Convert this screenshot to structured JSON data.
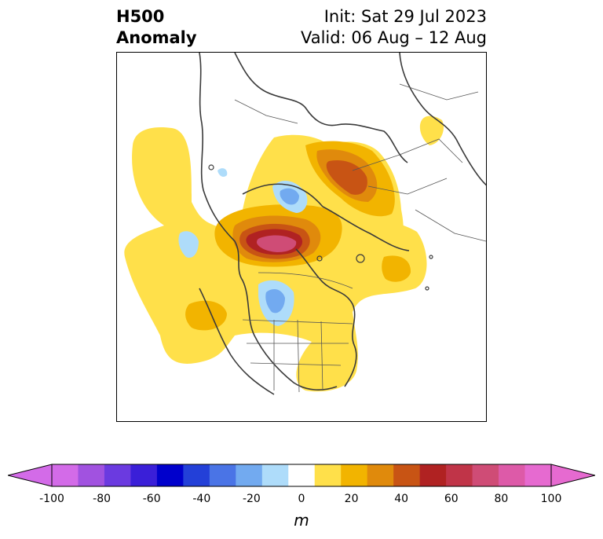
{
  "header": {
    "title_line1": "H500",
    "title_line2": "Anomaly",
    "init": "Init: Sat 29 Jul 2023",
    "valid": "Valid: 06 Aug – 12 Aug"
  },
  "colorbar": {
    "unit": "m",
    "ticks": [
      "-100",
      "-80",
      "-60",
      "-40",
      "-20",
      "0",
      "20",
      "40",
      "60",
      "80",
      "100"
    ],
    "levels": [
      -100,
      -90,
      -80,
      -70,
      -60,
      -50,
      -40,
      -30,
      -20,
      -10,
      10,
      20,
      30,
      40,
      50,
      60,
      70,
      80,
      90,
      100
    ],
    "colors": [
      "#d36be8",
      "#a152e0",
      "#6b3ae0",
      "#3a1fd8",
      "#0000cc",
      "#2340d8",
      "#4a74e6",
      "#72aaf0",
      "#aedcfa",
      "#ffffff",
      "#ffe04a",
      "#f2b400",
      "#e08a0c",
      "#c85414",
      "#b02222",
      "#c03448",
      "#cf4c76",
      "#dd5aa8",
      "#e66ad0"
    ],
    "under_color": "#d36be8",
    "over_color": "#e66ad0"
  }
}
